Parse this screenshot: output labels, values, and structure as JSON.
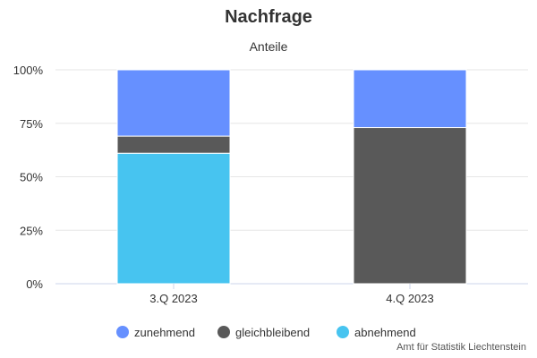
{
  "title": "Nachfrage",
  "subtitle": "Anteile",
  "credit": "Amt für Statistik Liechtenstein",
  "colors": {
    "zunehmend": "#6690ff",
    "gleichbleibend": "#595959",
    "abnehmend": "#47c4f0",
    "grid": "#e6e6e6",
    "axis": "#ccd6eb"
  },
  "chart_data": {
    "type": "bar",
    "stacked": true,
    "stacking": "percent",
    "categories": [
      "3.Q 2023",
      "4.Q 2023"
    ],
    "series": [
      {
        "name": "zunehmend",
        "values": [
          31,
          27
        ]
      },
      {
        "name": "gleichbleibend",
        "values": [
          8,
          73
        ]
      },
      {
        "name": "abnehmend",
        "values": [
          61,
          0
        ]
      }
    ],
    "y_ticks": [
      "0%",
      "25%",
      "50%",
      "75%",
      "100%"
    ],
    "ylim": [
      0,
      100
    ],
    "grid": true,
    "legend": "bottom-center"
  }
}
